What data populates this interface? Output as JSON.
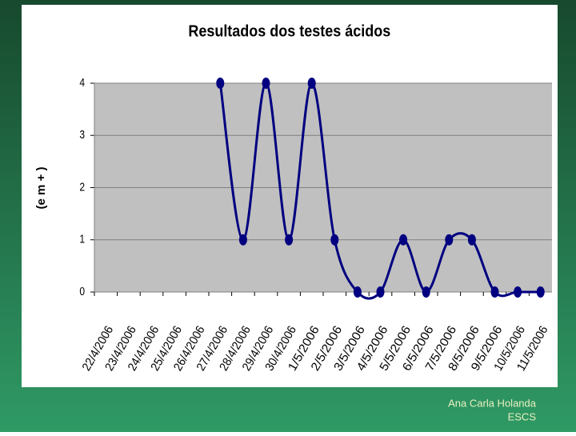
{
  "chart_data": {
    "type": "line",
    "title": "Resultados dos testes ácidos",
    "y_label": "(e m + )",
    "categories": [
      "22/4/2006",
      "23/4/2006",
      "24/4/2006",
      "25/4/2006",
      "26/4/2006",
      "27/4/2006",
      "28/4/2006",
      "29/4/2006",
      "30/4/2006",
      "1/5/2006",
      "2/5/2006",
      "3/5/2006",
      "4/5/2006",
      "5/5/2006",
      "6/5/2006",
      "7/5/2006",
      "8/5/2006",
      "9/5/2006",
      "10/5/2006",
      "11/5/2006"
    ],
    "series": [
      {
        "name": "Resultados",
        "color": "#000080",
        "values": [
          null,
          null,
          null,
          null,
          null,
          4,
          1,
          4,
          1,
          4,
          1,
          0,
          0,
          1,
          0,
          1,
          1,
          0,
          0,
          0
        ]
      }
    ],
    "ylim": [
      0,
      4
    ],
    "yticks": [
      0,
      1,
      2,
      3,
      4
    ],
    "grid": true
  },
  "footer": {
    "author": "Ana Carla Holanda",
    "institution": "ESCS"
  }
}
